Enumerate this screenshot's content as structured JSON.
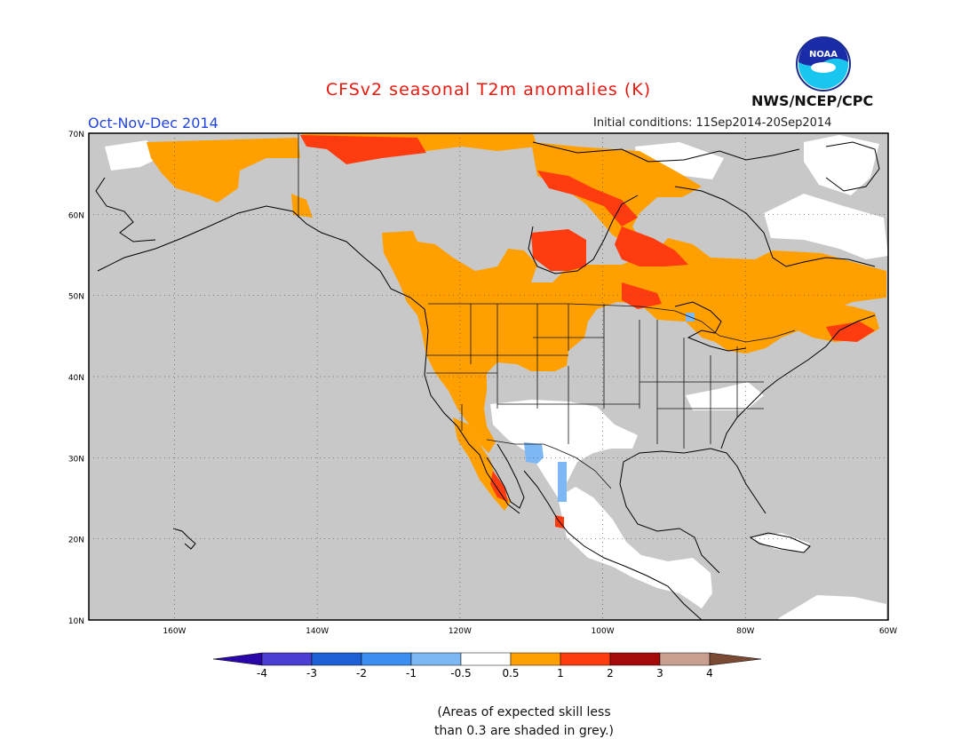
{
  "title": "CFSv2 seasonal T2m anomalies (K)",
  "season": "Oct-Nov-Dec 2014",
  "initial_conditions": "Initial conditions: 11Sep2014-20Sep2014",
  "agency": "NWS/NCEP/CPC",
  "logo_text": "NOAA",
  "map": {
    "lon_range": [
      -172,
      -60
    ],
    "lat_range": [
      10,
      70
    ],
    "lon_ticks": [
      {
        "value": -160,
        "label": "160W"
      },
      {
        "value": -140,
        "label": "140W"
      },
      {
        "value": -120,
        "label": "120W"
      },
      {
        "value": -100,
        "label": "100W"
      },
      {
        "value": -80,
        "label": "80W"
      },
      {
        "value": -60,
        "label": "60W"
      }
    ],
    "lat_ticks": [
      {
        "value": 70,
        "label": "70N"
      },
      {
        "value": 60,
        "label": "60N"
      },
      {
        "value": 50,
        "label": "50N"
      },
      {
        "value": 40,
        "label": "40N"
      },
      {
        "value": 30,
        "label": "30N"
      },
      {
        "value": 20,
        "label": "20N"
      },
      {
        "value": 10,
        "label": "10N"
      }
    ],
    "gridlines": "dotted",
    "no_skill_color": "#c8c8c8"
  },
  "colorbar": {
    "colors": [
      "#2a05a8",
      "#4a3fd0",
      "#1f5fd6",
      "#3c8ef0",
      "#7db8f5",
      "#ffffff",
      "#ffa000",
      "#ff3c10",
      "#a50a0a",
      "#c9a090",
      "#7a4a35"
    ],
    "labels": [
      "-4",
      "-3",
      "-2",
      "-1",
      "-0.5",
      "0.5",
      "1",
      "2",
      "3",
      "4"
    ]
  },
  "footnote": {
    "line1": "(Areas of expected skill less",
    "line2": "than 0.3 are shaded in grey.)"
  }
}
